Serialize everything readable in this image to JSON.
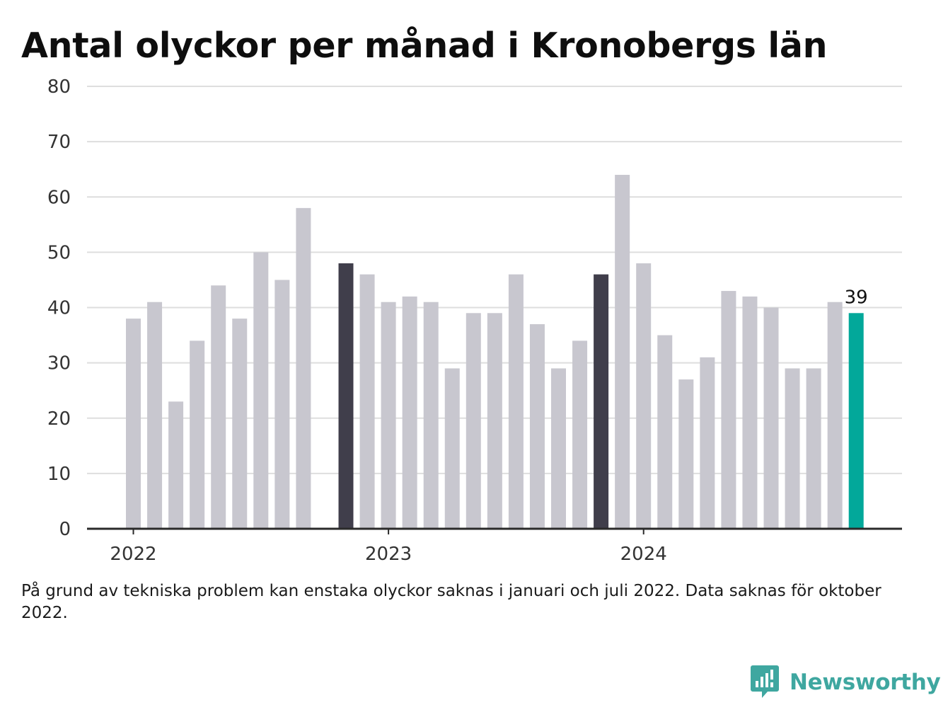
{
  "title": "Antal olyckor per månad i Kronobergs län",
  "note": "På grund av tekniska problem kan enstaka olyckor saknas i januari och juli 2022. Data saknas för oktober 2022.",
  "brand": {
    "name": "Newsworthy",
    "icon": "bar-chart-speech-bubble-icon"
  },
  "colors": {
    "default": "#c8c7cf",
    "january": "#403e4b",
    "latest": "#02a89a",
    "brand": "#3fa7a0"
  },
  "chart_data": {
    "type": "bar",
    "title": "Antal olyckor per månad i Kronobergs län",
    "xlabel": "",
    "ylabel": "",
    "ylim": [
      0,
      80
    ],
    "yticks": [
      "0",
      "10",
      "20",
      "30",
      "40",
      "50",
      "60",
      "70",
      "80"
    ],
    "xticks": [
      "2022",
      "2023",
      "2024"
    ],
    "grid": true,
    "categories": [
      "2022-01",
      "2022-02",
      "2022-03",
      "2022-04",
      "2022-05",
      "2022-06",
      "2022-07",
      "2022-08",
      "2022-09",
      "2022-10",
      "2022-11",
      "2022-12",
      "2023-01",
      "2023-02",
      "2023-03",
      "2023-04",
      "2023-05",
      "2023-06",
      "2023-07",
      "2023-08",
      "2023-09",
      "2023-10",
      "2023-11",
      "2023-12",
      "2024-01",
      "2024-02",
      "2024-03",
      "2024-04",
      "2024-05",
      "2024-06",
      "2024-07",
      "2024-08",
      "2024-09",
      "2024-10",
      "2024-11"
    ],
    "values": [
      38,
      41,
      23,
      34,
      44,
      38,
      50,
      45,
      58,
      null,
      48,
      46,
      41,
      42,
      41,
      29,
      39,
      39,
      46,
      37,
      29,
      34,
      46,
      64,
      48,
      35,
      27,
      31,
      43,
      42,
      40,
      29,
      29,
      41,
      39
    ],
    "highlight_dark": [
      "2022-11",
      "2023-11"
    ],
    "highlight_latest": "2024-11",
    "data_labels": [
      {
        "category": "2024-11",
        "text": "39"
      }
    ]
  }
}
